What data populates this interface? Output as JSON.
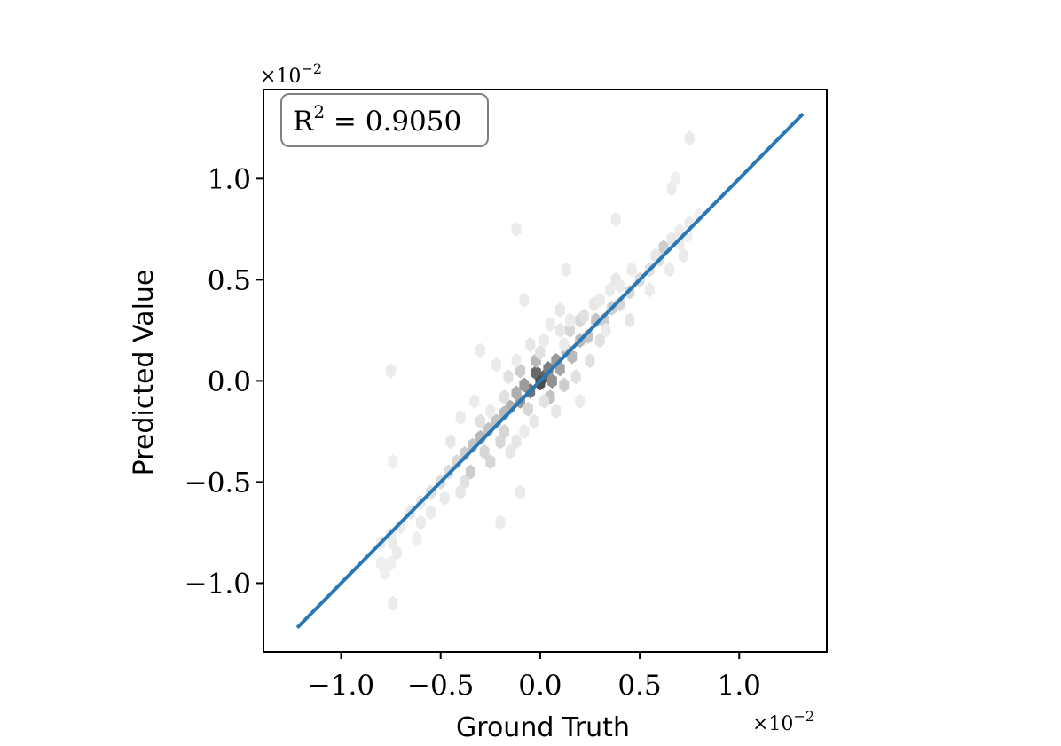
{
  "chart_data": {
    "type": "hexbin",
    "xlabel": "Ground Truth",
    "ylabel": "Predicted Value",
    "x_offset_label": "×10",
    "x_offset_exp": "−2",
    "y_offset_label": "×10",
    "y_offset_exp": "−2",
    "annotation": {
      "prefix": "R",
      "sup": "2",
      "suffix": " = 0.9050",
      "r2": 0.905
    },
    "xlim": [
      -1.39,
      1.44
    ],
    "ylim": [
      -1.34,
      1.44
    ],
    "xticks": [
      -1.0,
      -0.5,
      0.0,
      0.5,
      1.0
    ],
    "xtick_labels": [
      "−1.0",
      "−0.5",
      "0.0",
      "0.5",
      "1.0"
    ],
    "yticks": [
      -1.0,
      -0.5,
      0.0,
      0.5,
      1.0
    ],
    "ytick_labels": [
      "−1.0",
      "−0.5",
      "0.0",
      "0.5",
      "1.0"
    ],
    "fit_line": {
      "x": [
        -1.22,
        1.32
      ],
      "y": [
        -1.22,
        1.32
      ],
      "color": "#2878b5"
    },
    "hexbins": [
      [
        -0.02,
        0.04,
        0.75
      ],
      [
        0.02,
        0.02,
        0.8
      ],
      [
        0.0,
        -0.01,
        0.9
      ],
      [
        0.04,
        0.06,
        0.65
      ],
      [
        -0.05,
        -0.05,
        0.7
      ],
      [
        0.06,
        0.0,
        0.55
      ],
      [
        -0.08,
        -0.02,
        0.5
      ],
      [
        0.08,
        0.1,
        0.5
      ],
      [
        -0.1,
        -0.1,
        0.5
      ],
      [
        0.1,
        0.06,
        0.45
      ],
      [
        -0.12,
        -0.06,
        0.4
      ],
      [
        0.13,
        0.15,
        0.4
      ],
      [
        -0.15,
        -0.13,
        0.4
      ],
      [
        0.16,
        0.12,
        0.35
      ],
      [
        -0.18,
        -0.16,
        0.35
      ],
      [
        0.2,
        0.2,
        0.35
      ],
      [
        -0.22,
        -0.2,
        0.3
      ],
      [
        0.24,
        0.22,
        0.3
      ],
      [
        -0.26,
        -0.24,
        0.3
      ],
      [
        0.28,
        0.3,
        0.3
      ],
      [
        -0.3,
        -0.28,
        0.35
      ],
      [
        0.32,
        0.3,
        0.25
      ],
      [
        -0.34,
        -0.32,
        0.3
      ],
      [
        0.36,
        0.36,
        0.25
      ],
      [
        -0.38,
        -0.36,
        0.25
      ],
      [
        0.4,
        0.38,
        0.2
      ],
      [
        -0.42,
        -0.4,
        0.2
      ],
      [
        0.45,
        0.44,
        0.2
      ],
      [
        -0.46,
        -0.45,
        0.18
      ],
      [
        0.5,
        0.5,
        0.18
      ],
      [
        -0.5,
        -0.5,
        0.18
      ],
      [
        0.55,
        0.55,
        0.15
      ],
      [
        -0.55,
        -0.55,
        0.15
      ],
      [
        0.6,
        0.6,
        0.15
      ],
      [
        -0.6,
        -0.6,
        0.12
      ],
      [
        0.62,
        0.66,
        0.25
      ],
      [
        0.58,
        0.62,
        0.12
      ],
      [
        -0.65,
        -0.65,
        0.12
      ],
      [
        0.66,
        0.7,
        0.12
      ],
      [
        -0.7,
        -0.72,
        0.1
      ],
      [
        0.7,
        0.74,
        0.1
      ],
      [
        -0.75,
        -0.76,
        0.1
      ],
      [
        0.75,
        0.78,
        0.1
      ],
      [
        -0.8,
        -0.8,
        0.1
      ],
      [
        -0.02,
        0.1,
        0.35
      ],
      [
        0.05,
        -0.08,
        0.3
      ],
      [
        -0.1,
        0.05,
        0.25
      ],
      [
        0.12,
        -0.02,
        0.25
      ],
      [
        -0.16,
        0.02,
        0.15
      ],
      [
        0.18,
        0.02,
        0.15
      ],
      [
        -0.2,
        -0.3,
        0.2
      ],
      [
        0.2,
        0.3,
        0.2
      ],
      [
        -0.3,
        -0.2,
        0.15
      ],
      [
        0.3,
        0.2,
        0.15
      ],
      [
        -0.38,
        -0.5,
        0.15
      ],
      [
        0.38,
        0.5,
        0.12
      ],
      [
        -0.45,
        -0.3,
        0.12
      ],
      [
        0.45,
        0.3,
        0.12
      ],
      [
        -0.25,
        -0.4,
        0.2
      ],
      [
        0.25,
        0.1,
        0.15
      ],
      [
        -0.05,
        0.18,
        0.12
      ],
      [
        0.08,
        -0.15,
        0.12
      ],
      [
        -0.18,
        -0.25,
        0.2
      ],
      [
        0.15,
        0.25,
        0.2
      ],
      [
        -0.12,
        -0.3,
        0.12
      ],
      [
        0.1,
        0.35,
        0.12
      ],
      [
        -0.35,
        -0.45,
        0.25
      ],
      [
        -0.28,
        -0.35,
        0.2
      ],
      [
        0.22,
        0.32,
        0.15
      ],
      [
        0.27,
        0.38,
        0.12
      ],
      [
        -0.55,
        -0.65,
        0.1
      ],
      [
        -0.6,
        -0.7,
        0.1
      ],
      [
        -0.72,
        -0.85,
        0.1
      ],
      [
        -0.75,
        -0.9,
        0.08
      ],
      [
        -0.78,
        -0.95,
        0.08
      ],
      [
        -0.62,
        -0.78,
        0.08
      ],
      [
        0.65,
        0.55,
        0.1
      ],
      [
        0.55,
        0.45,
        0.1
      ],
      [
        0.46,
        0.55,
        0.1
      ],
      [
        0.4,
        0.47,
        0.1
      ],
      [
        0.7,
        0.68,
        0.1
      ],
      [
        0.74,
        0.72,
        0.08
      ],
      [
        -0.15,
        -0.35,
        0.12
      ],
      [
        -0.08,
        -0.25,
        0.1
      ],
      [
        -0.12,
        0.1,
        0.1
      ],
      [
        0.02,
        0.2,
        0.1
      ],
      [
        0.1,
        0.25,
        0.12
      ],
      [
        0.05,
        0.28,
        0.1
      ],
      [
        -0.33,
        -0.1,
        0.1
      ],
      [
        -0.4,
        -0.18,
        0.1
      ],
      [
        -0.4,
        -0.55,
        0.12
      ],
      [
        -0.48,
        -0.58,
        0.1
      ],
      [
        0.3,
        0.4,
        0.1
      ],
      [
        0.35,
        0.45,
        0.1
      ],
      [
        -0.22,
        0.08,
        0.1
      ],
      [
        0.15,
        0.3,
        0.1
      ],
      [
        0.33,
        0.25,
        0.1
      ],
      [
        -0.18,
        -0.08,
        0.15
      ],
      [
        -0.06,
        -0.14,
        0.2
      ],
      [
        0.02,
        -0.1,
        0.15
      ],
      [
        -0.03,
        -0.2,
        0.12
      ],
      [
        0.0,
        0.14,
        0.15
      ],
      [
        -0.75,
        0.05,
        0.1
      ],
      [
        0.75,
        1.2,
        0.1
      ],
      [
        0.66,
        0.95,
        0.1
      ],
      [
        0.38,
        0.8,
        0.1
      ],
      [
        0.13,
        0.55,
        0.1
      ],
      [
        -0.12,
        0.75,
        0.1
      ],
      [
        -0.3,
        0.15,
        0.1
      ],
      [
        0.2,
        -0.1,
        0.1
      ],
      [
        -0.2,
        -0.7,
        0.1
      ],
      [
        -0.1,
        -0.55,
        0.1
      ],
      [
        -0.74,
        -1.1,
        0.1
      ],
      [
        -0.74,
        -0.8,
        0.1
      ],
      [
        -0.8,
        -0.9,
        0.08
      ],
      [
        -0.08,
        0.4,
        0.1
      ],
      [
        -0.25,
        -0.15,
        0.1
      ],
      [
        0.12,
        0.18,
        0.1
      ],
      [
        0.8,
        0.82,
        0.08
      ],
      [
        0.72,
        0.62,
        0.1
      ],
      [
        0.68,
        1.0,
        0.08
      ],
      [
        -0.74,
        -0.4,
        0.08
      ]
    ]
  }
}
